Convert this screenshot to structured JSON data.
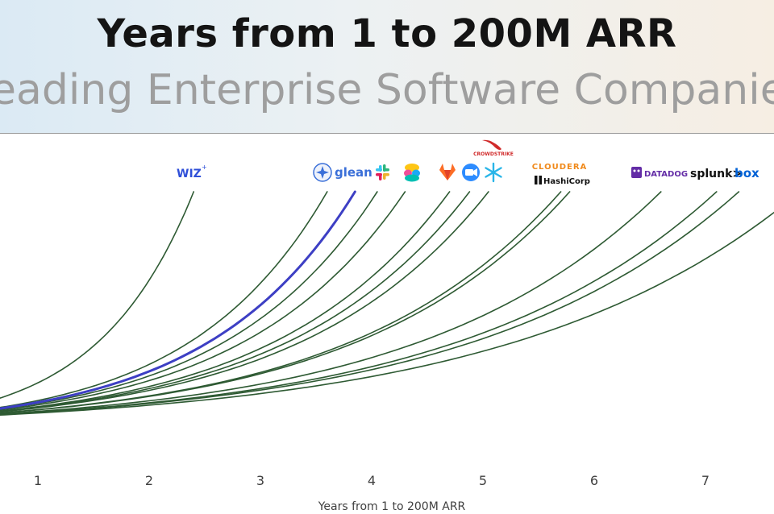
{
  "title": "Years from 1 to 200M ARR",
  "subtitle": "Leading Enterprise Software Companies",
  "logos": {
    "wiz": "WIZ",
    "glean": "glean",
    "crowdstrike": "CROWDSTRIKE",
    "cloudera": "CLOUDERA",
    "hashicorp": "HashiCorp",
    "datadog": "DATADOG",
    "splunk": "splunk>",
    "box": "box"
  },
  "colors": {
    "curve": "#2e5a33",
    "highlight": "#3d3fc4",
    "wiz": "#2f4fd8",
    "glean": "#3a6fd8",
    "crowdstrike": "#d02a2a",
    "cloudera": "#f08a1c",
    "datadog": "#632ca6"
  },
  "chart_data": {
    "type": "line",
    "title": "Years from 1 to 200M ARR",
    "subtitle": "Leading Enterprise Software Companies",
    "xlabel": "Years from 1 to 200M ARR",
    "ylabel": "",
    "x_ticks": [
      "1",
      "2",
      "3",
      "4",
      "5",
      "6",
      "7"
    ],
    "xlim": [
      0.8,
      7.5
    ],
    "ylim": [
      1,
      200
    ],
    "series": [
      {
        "x_end": 2.4,
        "highlight": false
      },
      {
        "x_end": 3.6,
        "highlight": false
      },
      {
        "x_end": 3.85,
        "highlight": true
      },
      {
        "x_end": 4.05,
        "highlight": false
      },
      {
        "x_end": 4.3,
        "highlight": false
      },
      {
        "x_end": 4.7,
        "highlight": false
      },
      {
        "x_end": 4.88,
        "highlight": false
      },
      {
        "x_end": 5.05,
        "highlight": false
      },
      {
        "x_end": 5.7,
        "highlight": false
      },
      {
        "x_end": 5.78,
        "highlight": false
      },
      {
        "x_end": 6.6,
        "highlight": false
      },
      {
        "x_end": 7.1,
        "highlight": false
      },
      {
        "x_end": 7.3,
        "highlight": false
      },
      {
        "x_end": 7.85,
        "highlight": false
      }
    ]
  }
}
